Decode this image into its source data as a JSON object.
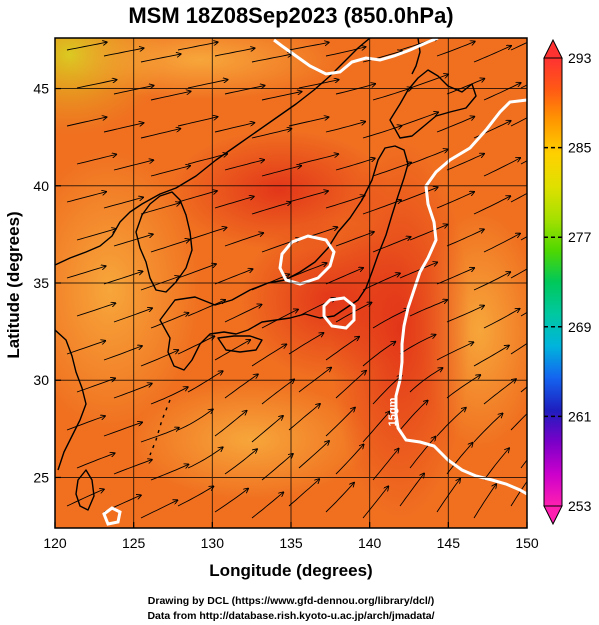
{
  "title": "MSM 18Z08Sep2023 (850.0hPa)",
  "x_axis": {
    "label": "Longitude (degrees)",
    "min": 120,
    "max": 150,
    "ticks": [
      "120",
      "125",
      "130",
      "135",
      "140",
      "145",
      "150"
    ],
    "tick_values": [
      120,
      125,
      130,
      135,
      140,
      145,
      150
    ]
  },
  "y_axis": {
    "label": "Latitude  (degrees)",
    "min": 22.4,
    "max": 47.6,
    "ticks": [
      "25",
      "30",
      "35",
      "40",
      "45"
    ],
    "tick_values": [
      25,
      30,
      35,
      40,
      45
    ]
  },
  "colorbar": {
    "min": 253,
    "max": 293,
    "ticks": [
      "293",
      "285",
      "277",
      "269",
      "261",
      "253"
    ],
    "tick_values": [
      293,
      285,
      277,
      269,
      261,
      253
    ],
    "palette": [
      "#ff1fb0",
      "#cc00cc",
      "#7a00c8",
      "#1e1ebe",
      "#1464f0",
      "#00b4dc",
      "#00c8a0",
      "#00c85a",
      "#50d800",
      "#a8e000",
      "#e0e000",
      "#ffd000",
      "#ff9a00",
      "#ff5a14",
      "#ff3232"
    ]
  },
  "contour_label": "15gm",
  "colors": {
    "field_main": "#f07020",
    "field_warm": "#e8401c",
    "field_cool": "#f8a838",
    "field_yellow": "#e8c020",
    "contour": "#ffffff",
    "coast": "#000000"
  },
  "footer": {
    "line1": "Drawing by DCL (https://www.gfd-dennou.org/library/dcl/)",
    "line2": "Data from http://database.rish.kyoto-u.ac.jp/arch/jmadata/"
  }
}
